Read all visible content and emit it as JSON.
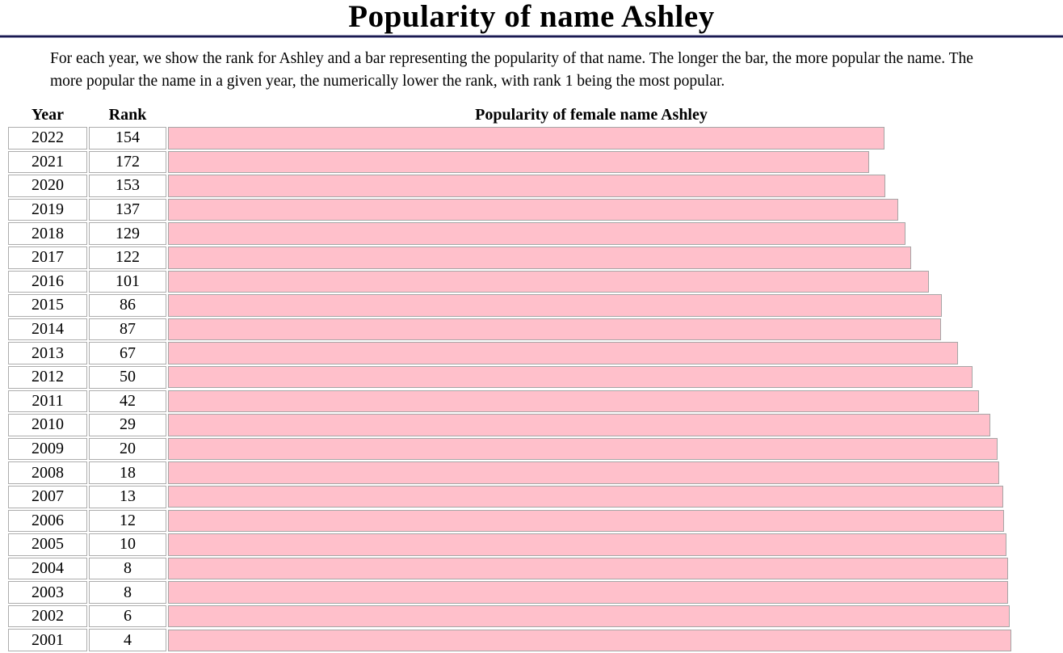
{
  "title": "Popularity of name Ashley",
  "description": "For each year, we show the rank for Ashley and a bar representing the popularity of that name. The longer the bar, the more popular the name. The more popular the name in a given year, the numerically lower the rank, with rank 1 being the most popular.",
  "table": {
    "columns": [
      "Year",
      "Rank",
      "Popularity of female name Ashley"
    ]
  },
  "colors": {
    "bar_fill": "#ffc0cb",
    "bar_border": "#a6a6a6",
    "divider": "#191950"
  },
  "chart_data": {
    "type": "bar",
    "orientation": "horizontal",
    "title": "Popularity of female name Ashley",
    "category_label": "Year",
    "value_label": "Rank",
    "categories": [
      "2022",
      "2021",
      "2020",
      "2019",
      "2018",
      "2017",
      "2016",
      "2015",
      "2014",
      "2013",
      "2012",
      "2011",
      "2010",
      "2009",
      "2008",
      "2007",
      "2006",
      "2005",
      "2004",
      "2003",
      "2002",
      "2001"
    ],
    "values": [
      154,
      172,
      153,
      137,
      129,
      122,
      101,
      86,
      87,
      67,
      50,
      42,
      29,
      20,
      18,
      13,
      12,
      10,
      8,
      8,
      6,
      4
    ],
    "scale": {
      "full_scale_rank": 1000
    },
    "bar_length_rule": "bar width fraction = (full_scale_rank - rank) / full_scale_rank; longer bar = more popular (lower rank)",
    "legend": "none",
    "grid": "off"
  }
}
